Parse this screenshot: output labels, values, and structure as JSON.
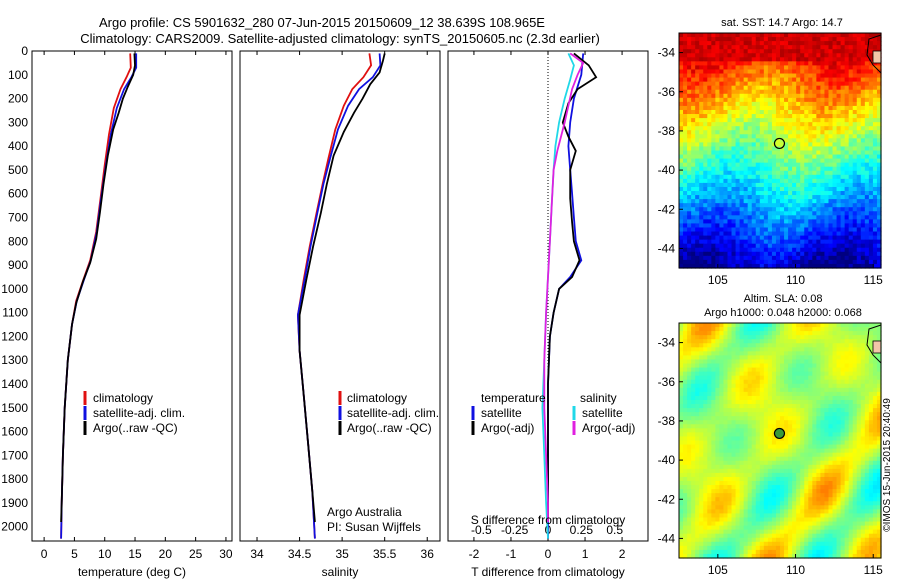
{
  "header": {
    "line1": "Argo profile: CS 5901632_280 07-Jun-2015 20150609_12 38.639S 108.965E",
    "line2": "Climatology: CARS2009. Satellite-adjusted climatology: synTS_20150605.nc (2.3d earlier)"
  },
  "colors": {
    "climatology": "#e01010",
    "satellite": "#1010e0",
    "argo": "#000000",
    "salinity_satellite": "#20d8e8",
    "salinity_argo": "#e020e0"
  },
  "chart_data": [
    {
      "type": "line",
      "name": "temperature-panel",
      "xlabel": "temperature (deg C)",
      "ylabel": "",
      "xlim": [
        -2,
        31
      ],
      "ylim": [
        2060,
        0
      ],
      "xticks": [
        0,
        5,
        10,
        15,
        20,
        25,
        30
      ],
      "yticks": [
        0,
        100,
        200,
        300,
        400,
        500,
        600,
        700,
        800,
        900,
        1000,
        1100,
        1200,
        1300,
        1400,
        1500,
        1600,
        1700,
        1800,
        1900,
        2000
      ],
      "legend": [
        "climatology",
        "satellite-adj. clim.",
        "Argo(..raw -QC)"
      ],
      "series": [
        {
          "name": "climatology",
          "color_key": "climatology",
          "points": [
            [
              14.2,
              10
            ],
            [
              14.3,
              70
            ],
            [
              13.6,
              110
            ],
            [
              12.6,
              160
            ],
            [
              11.5,
              240
            ],
            [
              10.7,
              350
            ],
            [
              10.0,
              480
            ],
            [
              9.3,
              620
            ],
            [
              8.6,
              760
            ],
            [
              7.6,
              880
            ],
            [
              6.5,
              960
            ],
            [
              5.3,
              1050
            ],
            [
              4.6,
              1150
            ],
            [
              3.9,
              1300
            ],
            [
              3.4,
              1500
            ],
            [
              3.1,
              1700
            ],
            [
              2.9,
              1900
            ],
            [
              2.8,
              2050
            ]
          ]
        },
        {
          "name": "satellite-adj. clim.",
          "color_key": "satellite",
          "points": [
            [
              15.2,
              10
            ],
            [
              15.2,
              70
            ],
            [
              14.4,
              110
            ],
            [
              13.2,
              160
            ],
            [
              12.0,
              240
            ],
            [
              11.0,
              350
            ],
            [
              10.2,
              480
            ],
            [
              9.4,
              620
            ],
            [
              8.7,
              760
            ],
            [
              7.7,
              880
            ],
            [
              6.6,
              960
            ],
            [
              5.4,
              1050
            ],
            [
              4.6,
              1150
            ],
            [
              3.9,
              1300
            ],
            [
              3.4,
              1500
            ],
            [
              3.1,
              1700
            ],
            [
              2.9,
              1900
            ],
            [
              2.8,
              2050
            ]
          ]
        },
        {
          "name": "Argo(..raw -QC)",
          "color_key": "argo",
          "points": [
            [
              14.9,
              10
            ],
            [
              15.0,
              60
            ],
            [
              14.7,
              100
            ],
            [
              13.8,
              150
            ],
            [
              13.0,
              200
            ],
            [
              12.3,
              260
            ],
            [
              11.4,
              330
            ],
            [
              10.5,
              440
            ],
            [
              9.8,
              560
            ],
            [
              9.2,
              680
            ],
            [
              8.6,
              790
            ],
            [
              7.6,
              890
            ],
            [
              6.4,
              970
            ],
            [
              5.3,
              1060
            ],
            [
              4.6,
              1150
            ],
            [
              3.9,
              1300
            ],
            [
              3.4,
              1500
            ],
            [
              3.1,
              1700
            ],
            [
              2.9,
              1900
            ],
            [
              2.8,
              1980
            ]
          ]
        }
      ]
    },
    {
      "type": "line",
      "name": "salinity-panel",
      "xlabel": "salinity",
      "ylabel": "",
      "xlim": [
        33.8,
        36.15
      ],
      "ylim": [
        2060,
        0
      ],
      "xticks": [
        34,
        34.5,
        35,
        35.5,
        36
      ],
      "legend": [
        "climatology",
        "satellite-adj. clim.",
        "Argo(..raw -QC)"
      ],
      "annotation": [
        "Argo Australia",
        "PI: Susan Wijffels"
      ],
      "series": [
        {
          "name": "climatology",
          "color_key": "climatology",
          "points": [
            [
              35.32,
              10
            ],
            [
              35.34,
              60
            ],
            [
              35.25,
              110
            ],
            [
              35.12,
              160
            ],
            [
              35.02,
              230
            ],
            [
              34.92,
              330
            ],
            [
              34.84,
              450
            ],
            [
              34.77,
              560
            ],
            [
              34.7,
              680
            ],
            [
              34.62,
              820
            ],
            [
              34.55,
              960
            ],
            [
              34.48,
              1110
            ],
            [
              34.5,
              1260
            ],
            [
              34.55,
              1450
            ],
            [
              34.6,
              1650
            ],
            [
              34.65,
              1850
            ],
            [
              34.68,
              2050
            ]
          ]
        },
        {
          "name": "satellite-adj. clim.",
          "color_key": "satellite",
          "points": [
            [
              35.44,
              10
            ],
            [
              35.45,
              60
            ],
            [
              35.36,
              110
            ],
            [
              35.2,
              160
            ],
            [
              35.07,
              230
            ],
            [
              34.95,
              330
            ],
            [
              34.86,
              450
            ],
            [
              34.78,
              560
            ],
            [
              34.71,
              680
            ],
            [
              34.63,
              820
            ],
            [
              34.56,
              960
            ],
            [
              34.48,
              1110
            ],
            [
              34.5,
              1260
            ],
            [
              34.55,
              1450
            ],
            [
              34.6,
              1650
            ],
            [
              34.65,
              1850
            ],
            [
              34.68,
              2050
            ]
          ]
        },
        {
          "name": "Argo(..raw -QC)",
          "color_key": "argo",
          "points": [
            [
              35.5,
              10
            ],
            [
              35.48,
              40
            ],
            [
              35.44,
              90
            ],
            [
              35.33,
              140
            ],
            [
              35.24,
              200
            ],
            [
              35.14,
              260
            ],
            [
              35.02,
              340
            ],
            [
              34.9,
              440
            ],
            [
              34.82,
              560
            ],
            [
              34.75,
              680
            ],
            [
              34.66,
              820
            ],
            [
              34.58,
              960
            ],
            [
              34.5,
              1110
            ],
            [
              34.5,
              1260
            ],
            [
              34.55,
              1450
            ],
            [
              34.6,
              1650
            ],
            [
              34.65,
              1850
            ],
            [
              34.68,
              1980
            ]
          ]
        }
      ]
    },
    {
      "type": "line",
      "name": "difference-panel",
      "xlabel": "T difference from climatology",
      "xlabel2": "S difference from climatology",
      "xlim": [
        -2.7,
        2.7
      ],
      "ylim": [
        2060,
        0
      ],
      "xticks": [
        -2,
        -1,
        0,
        1,
        2
      ],
      "xticklabels": [
        "-2",
        "-1",
        "0",
        "1",
        "2"
      ],
      "xticks2": [
        -1.8,
        -0.9,
        0,
        0.9,
        1.8
      ],
      "xticklabels2": [
        "-0.5",
        "-0.25",
        "0",
        "0.25",
        "0.5"
      ],
      "legend_headers": [
        "temperature",
        "salinity"
      ],
      "legend": [
        "satellite",
        "Argo(-adj)",
        "satellite",
        "Argo(-adj)"
      ],
      "series": [
        {
          "name": "satellite",
          "group": "temperature",
          "color_key": "satellite",
          "points": [
            [
              0.95,
              10
            ],
            [
              0.9,
              100
            ],
            [
              0.7,
              200
            ],
            [
              0.6,
              300
            ],
            [
              0.55,
              400
            ],
            [
              0.6,
              500
            ],
            [
              0.65,
              600
            ],
            [
              0.7,
              700
            ],
            [
              0.75,
              800
            ],
            [
              0.9,
              880
            ],
            [
              0.6,
              950
            ],
            [
              0.3,
              1000
            ],
            [
              0.15,
              1100
            ],
            [
              0.05,
              1200
            ],
            [
              0,
              1400
            ],
            [
              0,
              1700
            ],
            [
              0,
              2050
            ]
          ]
        },
        {
          "name": "Argo(-adj)",
          "group": "temperature",
          "color_key": "argo",
          "points": [
            [
              0.7,
              10
            ],
            [
              1.1,
              60
            ],
            [
              1.3,
              110
            ],
            [
              0.8,
              160
            ],
            [
              0.55,
              220
            ],
            [
              0.4,
              300
            ],
            [
              0.55,
              360
            ],
            [
              0.75,
              420
            ],
            [
              0.6,
              500
            ],
            [
              0.6,
              620
            ],
            [
              0.65,
              720
            ],
            [
              0.7,
              800
            ],
            [
              0.85,
              880
            ],
            [
              0.65,
              950
            ],
            [
              0.3,
              1000
            ],
            [
              0.15,
              1100
            ],
            [
              0.05,
              1200
            ],
            [
              0,
              1400
            ],
            [
              0,
              1700
            ],
            [
              0,
              1980
            ]
          ]
        },
        {
          "name": "satellite",
          "group": "salinity",
          "color_key": "salinity_satellite",
          "points": [
            [
              0.55,
              10
            ],
            [
              0.7,
              60
            ],
            [
              0.6,
              120
            ],
            [
              0.45,
              200
            ],
            [
              0.3,
              300
            ],
            [
              0.2,
              400
            ],
            [
              0.15,
              500
            ],
            [
              0.1,
              650
            ],
            [
              0.05,
              800
            ],
            [
              0,
              950
            ],
            [
              -0.05,
              1100
            ],
            [
              -0.1,
              1300
            ],
            [
              -0.15,
              1500
            ],
            [
              -0.1,
              1700
            ],
            [
              -0.05,
              1900
            ],
            [
              0,
              2050
            ]
          ]
        },
        {
          "name": "Argo(-adj)",
          "group": "salinity",
          "color_key": "salinity_argo",
          "points": [
            [
              0.6,
              10
            ],
            [
              0.95,
              50
            ],
            [
              0.8,
              100
            ],
            [
              0.65,
              160
            ],
            [
              0.55,
              230
            ],
            [
              0.45,
              300
            ],
            [
              0.35,
              360
            ],
            [
              0.25,
              420
            ],
            [
              0.15,
              500
            ],
            [
              0.1,
              650
            ],
            [
              0.05,
              800
            ],
            [
              0,
              950
            ],
            [
              -0.05,
              1100
            ],
            [
              -0.1,
              1300
            ],
            [
              -0.1,
              1500
            ],
            [
              -0.05,
              1700
            ],
            [
              0,
              1900
            ],
            [
              0,
              1980
            ]
          ]
        }
      ]
    },
    {
      "type": "heatmap",
      "name": "sst-map",
      "title": "sat. SST: 14.7 Argo: 14.7",
      "xlim": [
        102.5,
        115.5
      ],
      "ylim": [
        -45,
        -33
      ],
      "xticks": [
        105,
        110,
        115
      ],
      "yticks": [
        -34,
        -36,
        -38,
        -40,
        -42,
        -44
      ],
      "marker": {
        "lon": 108.965,
        "lat": -38.639
      }
    },
    {
      "type": "heatmap",
      "name": "sla-map",
      "title": [
        "Altim. SLA: 0.08",
        "Argo h1000: 0.048 h2000: 0.068"
      ],
      "xlim": [
        102.5,
        115.5
      ],
      "ylim": [
        -45,
        -33
      ],
      "xticks": [
        105,
        110,
        115
      ],
      "yticks": [
        -34,
        -36,
        -38,
        -40,
        -42,
        -44
      ],
      "marker": {
        "lon": 108.965,
        "lat": -38.639
      }
    }
  ],
  "credit": "©IMOS 15-Jun-2015 20:40:49"
}
